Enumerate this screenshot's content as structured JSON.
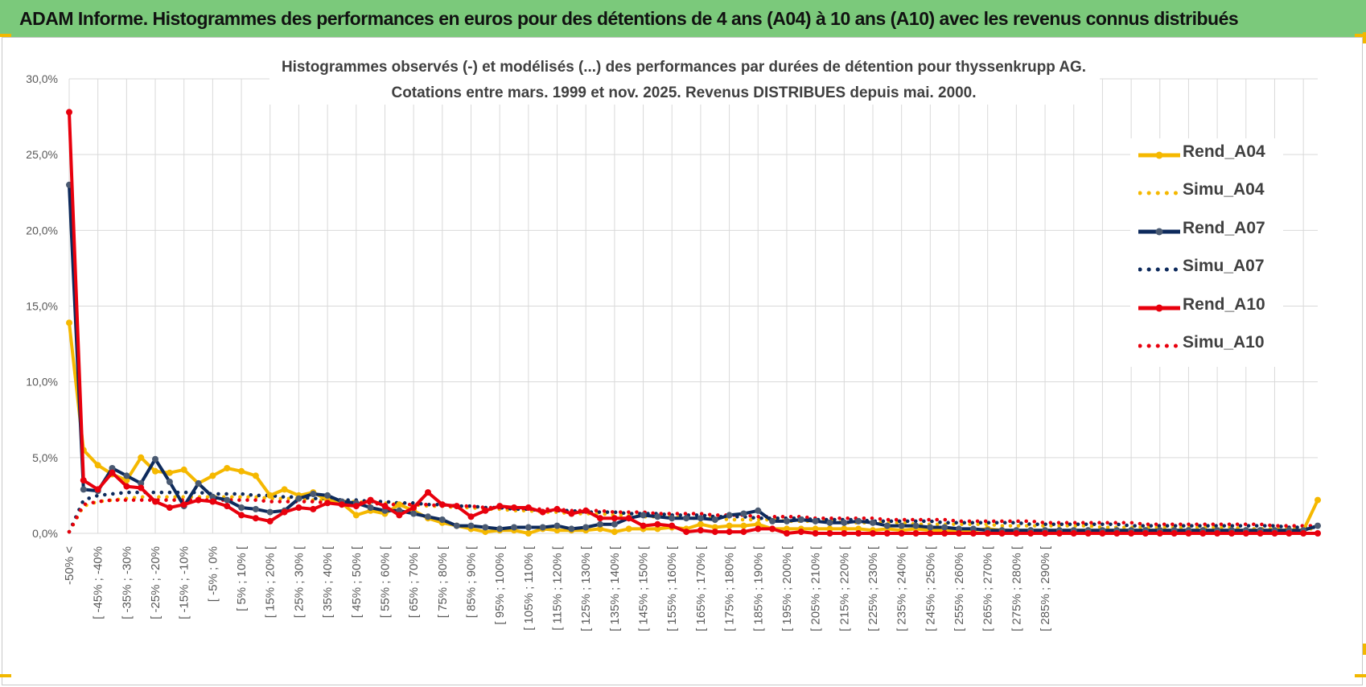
{
  "banner": {
    "title": "ADAM Informe. Histogrammes des performances en euros pour des détentions de 4 ans (A04) à 10 ans (A10) avec les revenus connus distribués"
  },
  "colors": {
    "banner_bg": "#7bc97b",
    "A04": "#f5b800",
    "A07": "#0d2a5c",
    "A10": "#e8000d",
    "grid": "#d9d9d9"
  },
  "chart_data": {
    "type": "line",
    "title_lines": [
      "Histogrammes observés (-) et modélisés (...) des performances par durées de détention pour thyssenkrupp AG.",
      "Cotations entre mars. 1999 et nov. 2025. Revenus DISTRIBUES depuis mai. 2000."
    ],
    "xlabel": "",
    "ylabel": "",
    "ylim": [
      0,
      30
    ],
    "y_ticks": [
      "0,0%",
      "5,0%",
      "10,0%",
      "15,0%",
      "20,0%",
      "25,0%",
      "30,0%"
    ],
    "grid": true,
    "legend_position": "right",
    "x_tick_labels": [
      "-50% <",
      "[ -45% ; -40%",
      "[ -35% ; -30%",
      "[ -25% ; -20%",
      "[ -15% ; -10%",
      "[ -5% ; 0%",
      "[ 5% ; 10% [",
      "[ 15% ; 20% [",
      "[ 25% ; 30% [",
      "[ 35% ; 40% [",
      "[ 45% ; 50% [",
      "[ 55% ; 60% [",
      "[ 65% ; 70% [",
      "[ 75% ; 80% [",
      "[ 85% ; 90% [",
      "[ 95% ; 100% [",
      "[ 105% ; 110% [",
      "[ 115% ; 120% [",
      "[ 125% ; 130% [",
      "[ 135% ; 140% [",
      "[ 145% ; 150% [",
      "[ 155% ; 160% [",
      "[ 165% ; 170% [",
      "[ 175% ; 180% [",
      "[ 185% ; 190% [",
      "[ 195% ; 200% [",
      "[ 205% ; 210% [",
      "[ 215% ; 220% [",
      "[ 225% ; 230% [",
      "[ 235% ; 240% [",
      "[ 245% ; 250% [",
      "[ 255% ; 260% [",
      "[ 265% ; 270% [",
      "[ 275% ; 280% [",
      "[ 285% ; 290% ["
    ],
    "series": [
      {
        "name": "Rend_A04",
        "key": "A04",
        "style": "solid",
        "values": [
          13.9,
          5.5,
          4.5,
          3.9,
          3.5,
          5.0,
          4.1,
          4.0,
          4.2,
          3.3,
          3.8,
          4.3,
          4.1,
          3.8,
          2.5,
          2.9,
          2.5,
          2.7,
          2.2,
          2.0,
          1.2,
          1.5,
          1.3,
          1.9,
          1.5,
          1.0,
          0.7,
          0.5,
          0.3,
          0.1,
          0.2,
          0.2,
          0.0,
          0.3,
          0.2,
          0.2,
          0.2,
          0.3,
          0.1,
          0.3,
          0.3,
          0.3,
          0.4,
          0.3,
          0.6,
          0.4,
          0.5,
          0.5,
          0.6,
          0.3,
          0.3,
          0.3,
          0.3,
          0.3,
          0.3,
          0.3,
          0.2,
          0.3,
          0.2,
          0.3,
          0.2,
          0.2,
          0.2,
          0.2,
          0.3,
          0.2,
          0.2,
          0.2,
          0.2,
          0.2,
          0.2,
          0.2,
          0.2,
          0.2,
          0.2,
          0.2,
          0.2,
          0.2,
          0.2,
          0.2,
          0.2,
          0.2,
          0.2,
          0.2,
          0.2,
          0.2,
          0.2,
          2.2
        ]
      },
      {
        "name": "Simu_A04",
        "key": "A04",
        "style": "dotted",
        "values": [
          0.1,
          1.8,
          2.1,
          2.2,
          2.3,
          2.4,
          2.4,
          2.4,
          2.4,
          2.4,
          2.4,
          2.4,
          2.4,
          2.4,
          2.3,
          2.3,
          2.3,
          2.2,
          2.2,
          2.1,
          2.1,
          2.0,
          2.0,
          1.9,
          1.9,
          1.8,
          1.8,
          1.7,
          1.7,
          1.6,
          1.6,
          1.5,
          1.5,
          1.4,
          1.4,
          1.3,
          1.3,
          1.3,
          1.2,
          1.2,
          1.1,
          1.1,
          1.1,
          1.0,
          1.0,
          1.0,
          0.9,
          0.9,
          0.9,
          0.9,
          0.8,
          0.8,
          0.8,
          0.8,
          0.7,
          0.7,
          0.7,
          0.7,
          0.7,
          0.6,
          0.6,
          0.6,
          0.6,
          0.6,
          0.6,
          0.5,
          0.5,
          0.5,
          0.5,
          0.5,
          0.5,
          0.5,
          0.4,
          0.4,
          0.4,
          0.4,
          0.4,
          0.4,
          0.4,
          0.4,
          0.4,
          0.4,
          0.3,
          0.3,
          0.3,
          0.3,
          0.3,
          0.3
        ]
      },
      {
        "name": "Rend_A07",
        "key": "A07",
        "style": "solid",
        "values": [
          23.0,
          2.9,
          2.8,
          4.3,
          3.8,
          3.3,
          4.9,
          3.4,
          1.8,
          3.3,
          2.4,
          2.2,
          1.7,
          1.6,
          1.4,
          1.5,
          2.3,
          2.6,
          2.5,
          2.1,
          2.0,
          1.7,
          1.5,
          1.5,
          1.3,
          1.1,
          0.9,
          0.5,
          0.5,
          0.4,
          0.3,
          0.4,
          0.4,
          0.4,
          0.5,
          0.3,
          0.4,
          0.6,
          0.6,
          1.0,
          1.2,
          1.1,
          1.0,
          1.0,
          1.0,
          0.9,
          1.2,
          1.3,
          1.5,
          0.8,
          0.8,
          0.9,
          0.8,
          0.7,
          0.7,
          0.8,
          0.7,
          0.5,
          0.5,
          0.5,
          0.4,
          0.4,
          0.3,
          0.3,
          0.2,
          0.2,
          0.2,
          0.2,
          0.2,
          0.2,
          0.2,
          0.2,
          0.2,
          0.2,
          0.2,
          0.2,
          0.2,
          0.2,
          0.2,
          0.2,
          0.2,
          0.2,
          0.2,
          0.2,
          0.2,
          0.2,
          0.2,
          0.5
        ]
      },
      {
        "name": "Simu_A07",
        "key": "A07",
        "style": "dotted",
        "values": [
          0.1,
          2.2,
          2.5,
          2.6,
          2.7,
          2.7,
          2.7,
          2.7,
          2.7,
          2.7,
          2.6,
          2.6,
          2.6,
          2.5,
          2.5,
          2.4,
          2.4,
          2.3,
          2.3,
          2.2,
          2.2,
          2.1,
          2.1,
          2.0,
          2.0,
          1.9,
          1.9,
          1.8,
          1.8,
          1.7,
          1.7,
          1.6,
          1.6,
          1.5,
          1.5,
          1.5,
          1.4,
          1.4,
          1.4,
          1.3,
          1.3,
          1.3,
          1.2,
          1.2,
          1.2,
          1.1,
          1.1,
          1.1,
          1.0,
          1.0,
          1.0,
          1.0,
          0.9,
          0.9,
          0.9,
          0.9,
          0.8,
          0.8,
          0.8,
          0.8,
          0.8,
          0.7,
          0.7,
          0.7,
          0.7,
          0.7,
          0.7,
          0.6,
          0.6,
          0.6,
          0.6,
          0.6,
          0.6,
          0.6,
          0.5,
          0.5,
          0.5,
          0.5,
          0.5,
          0.5,
          0.5,
          0.5,
          0.5,
          0.5,
          0.5,
          0.4,
          0.4,
          0.4
        ]
      },
      {
        "name": "Rend_A10",
        "key": "A10",
        "style": "solid",
        "values": [
          27.8,
          3.5,
          2.9,
          4.0,
          3.1,
          3.0,
          2.1,
          1.7,
          1.9,
          2.2,
          2.1,
          1.8,
          1.2,
          1.0,
          0.8,
          1.4,
          1.7,
          1.6,
          2.0,
          1.9,
          1.8,
          2.2,
          1.8,
          1.2,
          1.7,
          2.7,
          1.9,
          1.8,
          1.1,
          1.5,
          1.8,
          1.7,
          1.7,
          1.4,
          1.6,
          1.3,
          1.5,
          1.0,
          1.0,
          1.0,
          0.5,
          0.6,
          0.5,
          0.1,
          0.2,
          0.1,
          0.1,
          0.1,
          0.3,
          0.3,
          0.0,
          0.1,
          0.0,
          0.0,
          0.0,
          0.0,
          0.0,
          0.0,
          0.0,
          0.0,
          0.0,
          0.0,
          0.0,
          0.0,
          0.0,
          0.0,
          0.0,
          0.0,
          0.0,
          0.0,
          0.0,
          0.0,
          0.0,
          0.0,
          0.0,
          0.0,
          0.0,
          0.0,
          0.0,
          0.0,
          0.0,
          0.0,
          0.0,
          0.0,
          0.0,
          0.0,
          0.0,
          0.0
        ]
      },
      {
        "name": "Simu_A10",
        "key": "A10",
        "style": "dotted",
        "values": [
          0.1,
          1.9,
          2.1,
          2.2,
          2.2,
          2.2,
          2.2,
          2.2,
          2.2,
          2.2,
          2.2,
          2.2,
          2.2,
          2.2,
          2.1,
          2.1,
          2.1,
          2.1,
          2.0,
          2.0,
          2.0,
          2.0,
          1.9,
          1.9,
          1.9,
          1.9,
          1.8,
          1.8,
          1.8,
          1.7,
          1.7,
          1.7,
          1.6,
          1.6,
          1.6,
          1.5,
          1.5,
          1.5,
          1.4,
          1.4,
          1.4,
          1.3,
          1.3,
          1.3,
          1.3,
          1.2,
          1.2,
          1.2,
          1.1,
          1.1,
          1.1,
          1.1,
          1.0,
          1.0,
          1.0,
          1.0,
          1.0,
          0.9,
          0.9,
          0.9,
          0.9,
          0.9,
          0.8,
          0.8,
          0.8,
          0.8,
          0.8,
          0.8,
          0.7,
          0.7,
          0.7,
          0.7,
          0.7,
          0.7,
          0.7,
          0.6,
          0.6,
          0.6,
          0.6,
          0.6,
          0.6,
          0.6,
          0.6,
          0.6,
          0.5,
          0.5,
          0.5,
          0.5
        ]
      }
    ]
  }
}
